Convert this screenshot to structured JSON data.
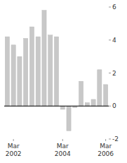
{
  "chart_data": {
    "type": "bar",
    "categories": [
      null,
      "Mar\n2002",
      null,
      null,
      null,
      null,
      null,
      null,
      null,
      "Mar\n2004",
      null,
      null,
      null,
      null,
      null,
      null,
      "Mar\n2006"
    ],
    "values": [
      4.2,
      3.7,
      3.0,
      4.1,
      4.8,
      4.2,
      5.8,
      4.3,
      4.2,
      -0.2,
      -1.5,
      -0.1,
      1.5,
      0.2,
      0.4,
      2.2,
      1.3
    ],
    "color": "#c8c8c8",
    "ylim": [
      -2,
      6
    ],
    "yticks": [
      -2,
      0,
      2,
      4,
      6
    ]
  }
}
